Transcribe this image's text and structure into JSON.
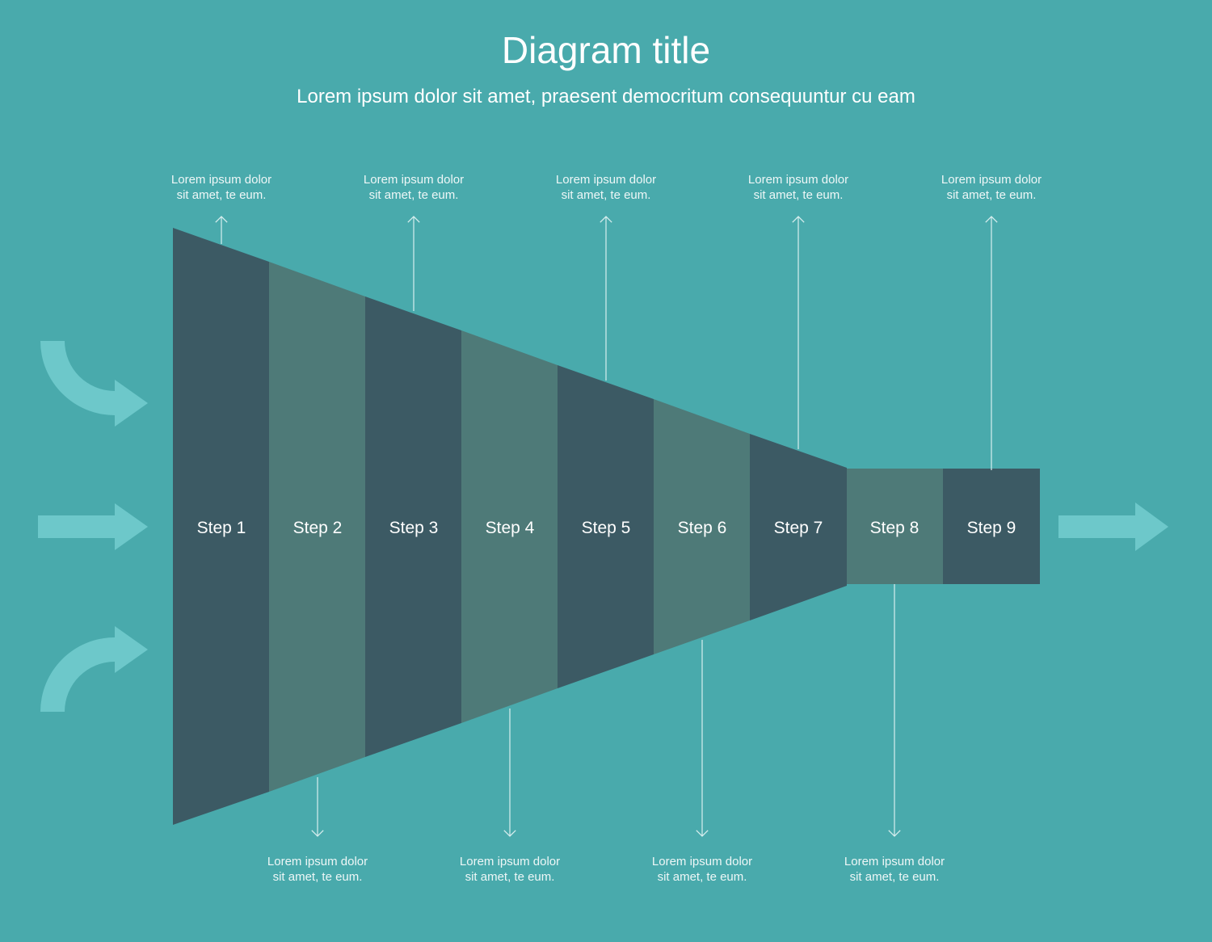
{
  "title": "Diagram title",
  "subtitle": "Lorem ipsum dolor sit amet, praesent democritum consequuntur cu eam",
  "colors": {
    "background": "#49aaac",
    "segment_dark": "#3c5a64",
    "segment_light": "#4e7a78",
    "arrow": "#6dc8ca",
    "line": "#d8eeee"
  },
  "steps": [
    {
      "label": "Step 1"
    },
    {
      "label": "Step 2"
    },
    {
      "label": "Step 3"
    },
    {
      "label": "Step 4"
    },
    {
      "label": "Step 5"
    },
    {
      "label": "Step 6"
    },
    {
      "label": "Step 7"
    },
    {
      "label": "Step 8"
    },
    {
      "label": "Step 9"
    }
  ],
  "notes_top": [
    {
      "line1": "Lorem ipsum dolor",
      "line2": "sit amet, te eum."
    },
    {
      "line1": "Lorem ipsum dolor",
      "line2": "sit amet, te eum."
    },
    {
      "line1": "Lorem ipsum dolor",
      "line2": "sit amet, te eum."
    },
    {
      "line1": "Lorem ipsum dolor",
      "line2": "sit amet, te eum."
    },
    {
      "line1": "Lorem ipsum dolor",
      "line2": "sit amet, te eum."
    }
  ],
  "notes_bottom": [
    {
      "line1": "Lorem ipsum dolor",
      "line2": "sit amet, te eum."
    },
    {
      "line1": "Lorem ipsum dolor",
      "line2": "sit amet, te eum."
    },
    {
      "line1": "Lorem ipsum dolor",
      "line2": "sit amet, te eum."
    },
    {
      "line1": "Lorem ipsum dolor",
      "line2": "sit amet, te eum."
    }
  ],
  "icons": {
    "input_top": "curved-arrow-down-right-icon",
    "input_middle": "arrow-right-icon",
    "input_bottom": "curved-arrow-up-right-icon",
    "output": "arrow-right-icon"
  }
}
